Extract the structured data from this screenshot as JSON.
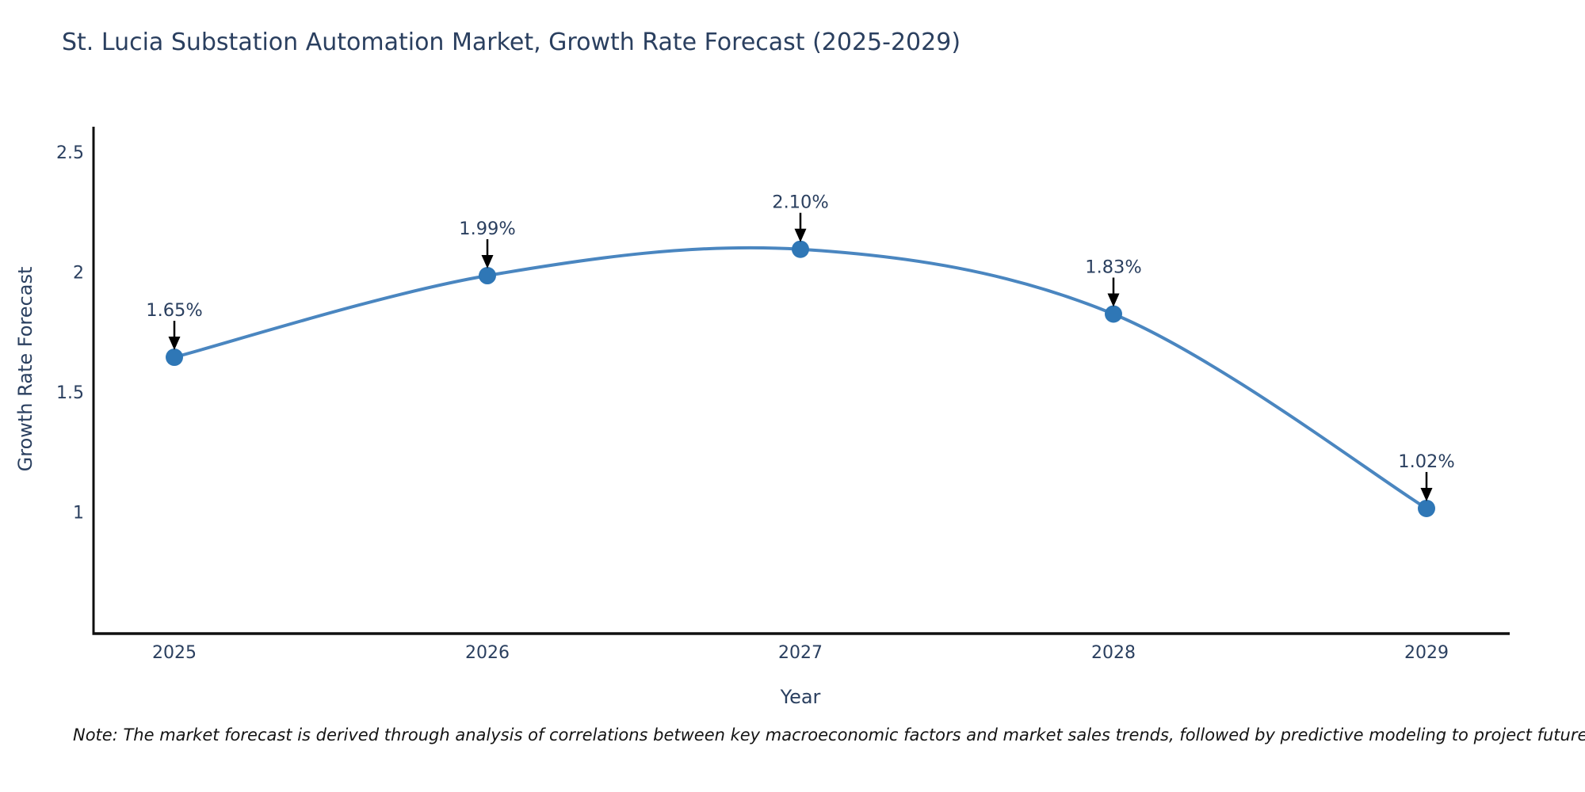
{
  "title": "St. Lucia Substation Automation Market, Growth Rate Forecast (2025-2029)",
  "note": "Note: The market forecast is derived through analysis of correlations between key macroeconomic factors and market sales trends, followed by predictive modeling to project future sales",
  "chart_data": {
    "type": "line",
    "title": "St. Lucia Substation Automation Market, Growth Rate Forecast (2025-2029)",
    "xlabel": "Year",
    "ylabel": "Growth Rate Forecast",
    "categories": [
      "2025",
      "2026",
      "2027",
      "2028",
      "2029"
    ],
    "series": [
      {
        "name": "Growth Rate Forecast",
        "values": [
          1.65,
          1.99,
          2.1,
          1.83,
          1.02
        ],
        "point_labels": [
          "1.65%",
          "1.99%",
          "2.10%",
          "1.83%",
          "1.02%"
        ]
      }
    ],
    "yticks": [
      1,
      1.5,
      2,
      2.5
    ],
    "ytick_labels": [
      "1",
      "1.5",
      "2",
      "2.5"
    ],
    "ylim": [
      0.5,
      2.61
    ],
    "line_shape": "spline",
    "grid": false,
    "legend_position": "none",
    "colors": {
      "line": "#4a86c0",
      "marker": "#2f77b6",
      "axis_line": "#0f0f0f",
      "text": "#2a3f5f",
      "arrow": "#000000",
      "background": "#ffffff"
    }
  }
}
